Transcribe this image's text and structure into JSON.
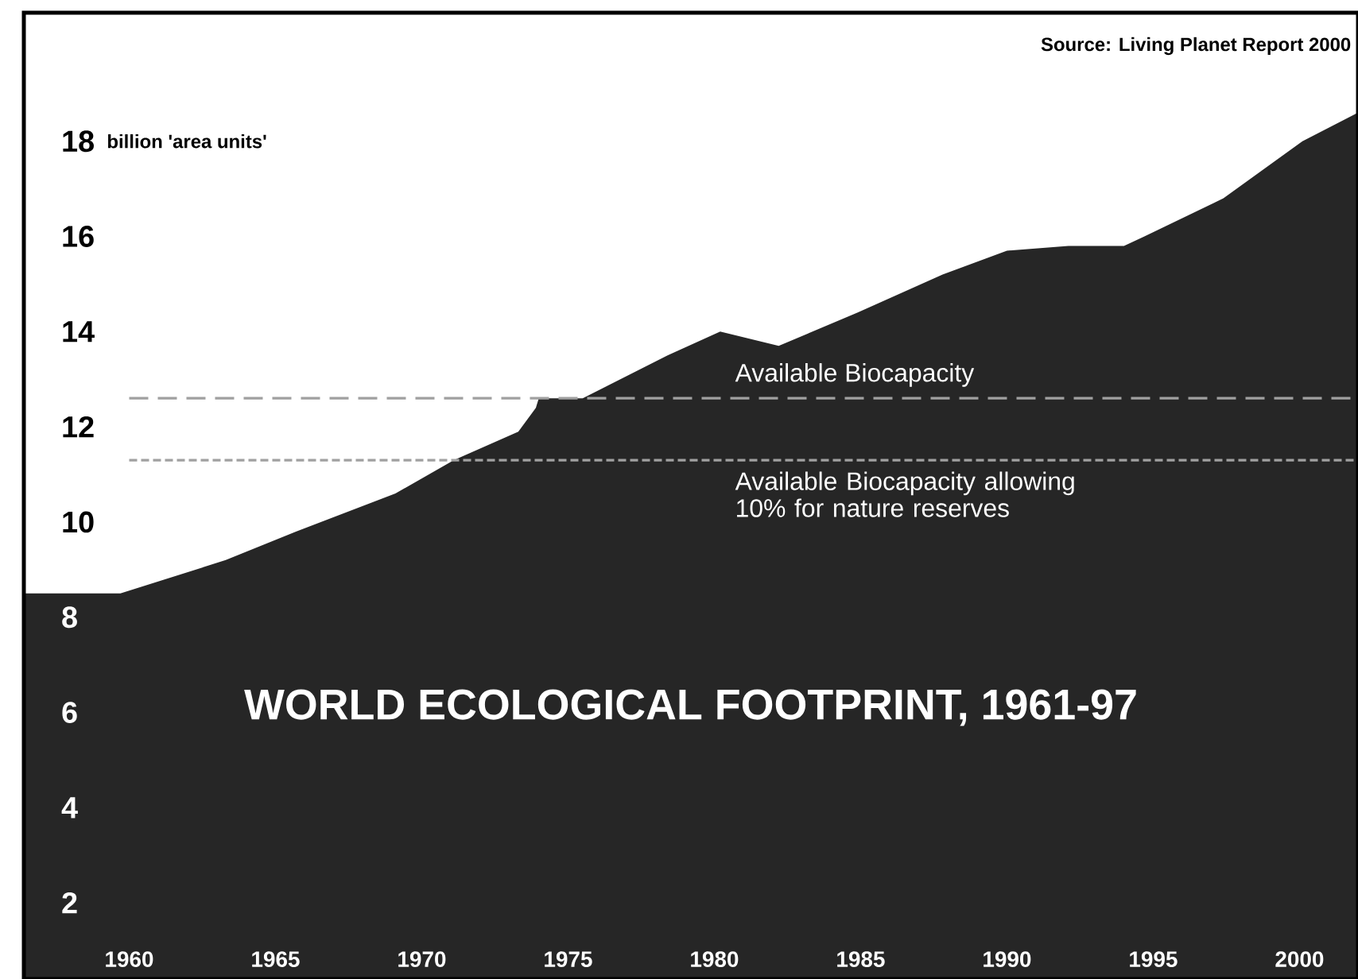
{
  "chart_data": {
    "type": "area",
    "title": "WORLD ECOLOGICAL FOOTPRINT, 1961-97",
    "ylabel": "billion 'area units'",
    "annotations": [
      "Source: Living Planet Report 2000"
    ],
    "x": [
      1956.4,
      1959.7,
      1963.3,
      1965.7,
      1969.1,
      1971.1,
      1973.3,
      1973.9,
      1974.0,
      1975.5,
      1978.4,
      1980.2,
      1982.2,
      1984.9,
      1987.8,
      1990.0,
      1992.1,
      1994.0,
      1994.7,
      1997.4,
      2000.1,
      2002.0
    ],
    "series": [
      {
        "color": "#262626",
        "values": [
          8.5,
          8.5,
          9.2,
          9.8,
          10.6,
          11.3,
          11.9,
          12.4,
          12.6,
          12.6,
          13.5,
          14.0,
          13.7,
          14.4,
          15.2,
          15.7,
          15.8,
          15.8,
          16.0,
          16.8,
          18.0,
          18.6
        ]
      }
    ],
    "xlim": [
      1956.4,
      2002
    ],
    "ylim": [
      0.4,
      20.7
    ],
    "xticks": [
      1960,
      1965,
      1970,
      1975,
      1980,
      1985,
      1990,
      1995,
      2000
    ],
    "yticks": [
      2,
      4,
      6,
      8,
      10,
      12,
      14,
      16,
      18
    ],
    "ref_lines": [
      {
        "axis": "y",
        "value": 12.6,
        "label": "Available Biocapacity",
        "line_style": "dashed",
        "color": "#a0a0a0"
      },
      {
        "axis": "y",
        "value": 11.3,
        "label": "Available Biocapacity allowing 10% for nature reserves",
        "line_style": "dotted",
        "color": "#a0a0a0"
      }
    ],
    "grid": false
  }
}
